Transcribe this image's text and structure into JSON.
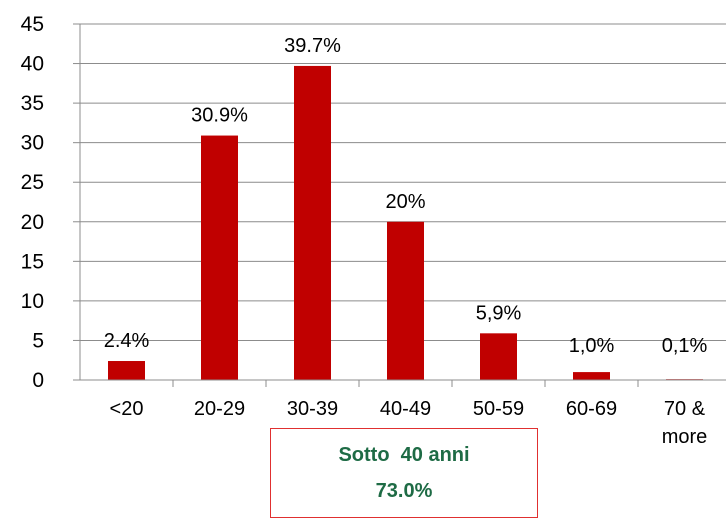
{
  "chart_data": {
    "type": "bar",
    "title": "",
    "xlabel": "",
    "ylabel": "",
    "categories": [
      "<20",
      "20-29",
      "30-39",
      "40-49",
      "50-59",
      "60-69",
      "70 &\nmore"
    ],
    "values": [
      2.4,
      30.9,
      39.7,
      20,
      5.9,
      1.0,
      0.1
    ],
    "data_labels": [
      "2.4%",
      "30.9%",
      "39.7%",
      "20%",
      "5,9%",
      "1,0%",
      "0,1%"
    ],
    "ylim": [
      0,
      45
    ],
    "yticks": [
      0,
      5,
      10,
      15,
      20,
      25,
      30,
      35,
      40,
      45
    ],
    "grid": true,
    "bar_color": "#c00000"
  },
  "callout": {
    "line1": "Sotto  40 anni",
    "line2": "73.0%",
    "border_color": "#e03030",
    "text_color": "#1e6b45"
  }
}
